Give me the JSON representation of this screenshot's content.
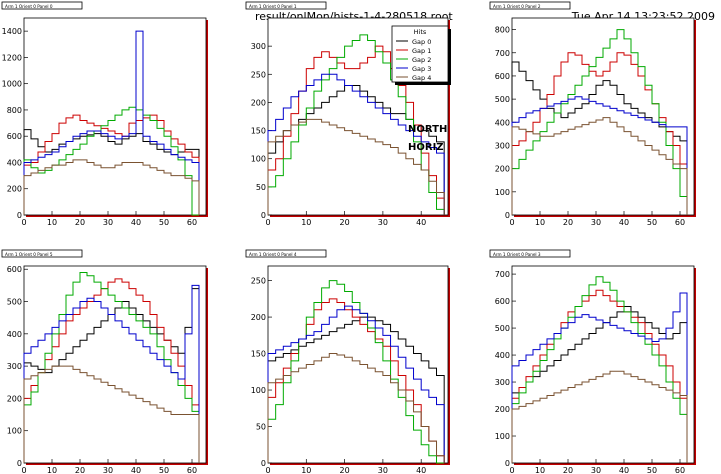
{
  "header": {
    "filename": "result/onlMon/hists-1-4-280518.root",
    "datetime": "Tue Apr 14 13:23:52 2009"
  },
  "annotation": {
    "line1": "NORTH",
    "line2": "HORIZ"
  },
  "colors": {
    "series": [
      "#000000",
      "#cc0000",
      "#00aa00",
      "#0000cc",
      "#7a5230"
    ],
    "frame_shadow": "#c00000"
  },
  "chart_data": [
    {
      "type": "line",
      "step": true,
      "title": "Arm 1 Orient 0 Panel 0",
      "xlim": [
        0,
        65
      ],
      "ylim": [
        0,
        1500
      ],
      "xticks": [
        0,
        10,
        20,
        30,
        40,
        50,
        60
      ],
      "yticks": [
        0,
        200,
        400,
        600,
        800,
        1000,
        1200,
        1400
      ],
      "x": [
        0,
        2.5,
        5,
        7.5,
        10,
        12.5,
        15,
        17.5,
        20,
        22.5,
        25,
        27.5,
        30,
        32.5,
        35,
        37.5,
        40,
        42.5,
        45,
        47.5,
        50,
        52.5,
        55,
        57.5,
        60
      ],
      "series": [
        {
          "values": [
            650,
            580,
            520,
            480,
            500,
            540,
            560,
            580,
            600,
            610,
            620,
            600,
            560,
            540,
            580,
            600,
            620,
            560,
            540,
            500,
            480,
            460,
            480,
            500,
            500
          ]
        },
        {
          "values": [
            380,
            400,
            480,
            560,
            620,
            700,
            740,
            760,
            720,
            700,
            680,
            660,
            640,
            620,
            600,
            700,
            720,
            740,
            760,
            720,
            640,
            580,
            540,
            480,
            440
          ]
        },
        {
          "values": [
            420,
            360,
            320,
            340,
            380,
            420,
            460,
            500,
            540,
            600,
            640,
            680,
            720,
            760,
            800,
            820,
            800,
            760,
            720,
            660,
            600,
            520,
            420,
            300,
            0
          ]
        },
        {
          "values": [
            400,
            420,
            440,
            460,
            480,
            520,
            560,
            600,
            620,
            640,
            640,
            620,
            600,
            580,
            600,
            620,
            1400,
            600,
            560,
            540,
            500,
            460,
            440,
            420,
            400
          ]
        },
        {
          "values": [
            300,
            320,
            340,
            360,
            380,
            380,
            400,
            420,
            420,
            400,
            380,
            360,
            360,
            380,
            400,
            400,
            400,
            380,
            360,
            340,
            320,
            300,
            300,
            280,
            260
          ]
        }
      ]
    },
    {
      "type": "line",
      "step": true,
      "title": "Arm 1 Orient 0 Panel 1",
      "xlim": [
        0,
        47
      ],
      "ylim": [
        0,
        350
      ],
      "xticks": [
        0,
        10,
        20,
        30,
        40
      ],
      "yticks": [
        0,
        50,
        100,
        150,
        200,
        250,
        300
      ],
      "x": [
        0,
        2,
        4,
        6,
        8,
        10,
        12,
        14,
        16,
        18,
        20,
        22,
        24,
        26,
        28,
        30,
        32,
        34,
        36,
        38,
        40,
        42,
        44
      ],
      "legend": {
        "title": "Hits",
        "placement": "top-right",
        "labels": [
          "Gap 0",
          "Gap 1",
          "Gap 2",
          "Gap 3",
          "Gap 4"
        ]
      },
      "series": [
        {
          "values": [
            110,
            130,
            150,
            160,
            170,
            180,
            190,
            200,
            210,
            220,
            230,
            230,
            220,
            210,
            200,
            190,
            180,
            180,
            170,
            160,
            150,
            140,
            130
          ]
        },
        {
          "values": [
            80,
            100,
            140,
            180,
            220,
            260,
            280,
            290,
            280,
            270,
            260,
            260,
            270,
            280,
            300,
            290,
            260,
            230,
            200,
            160,
            110,
            70,
            30
          ]
        },
        {
          "values": [
            50,
            70,
            100,
            130,
            160,
            190,
            220,
            240,
            260,
            280,
            300,
            310,
            320,
            310,
            290,
            270,
            240,
            210,
            170,
            130,
            80,
            40,
            10
          ]
        },
        {
          "values": [
            150,
            170,
            190,
            210,
            220,
            230,
            240,
            250,
            250,
            240,
            230,
            220,
            210,
            200,
            190,
            180,
            170,
            160,
            150,
            140,
            130,
            120,
            110
          ]
        },
        {
          "values": [
            130,
            140,
            150,
            160,
            165,
            170,
            170,
            165,
            160,
            155,
            150,
            145,
            140,
            135,
            130,
            125,
            120,
            110,
            100,
            90,
            80,
            60,
            40
          ]
        }
      ]
    },
    {
      "type": "line",
      "step": true,
      "title": "Arm 1 Orient 0 Panel 2",
      "xlim": [
        0,
        65
      ],
      "ylim": [
        0,
        850
      ],
      "xticks": [
        0,
        10,
        20,
        30,
        40,
        50,
        60
      ],
      "yticks": [
        0,
        100,
        200,
        300,
        400,
        500,
        600,
        700,
        800
      ],
      "x": [
        0,
        2.5,
        5,
        7.5,
        10,
        12.5,
        15,
        17.5,
        20,
        22.5,
        25,
        27.5,
        30,
        32.5,
        35,
        37.5,
        40,
        42.5,
        45,
        47.5,
        50,
        52.5,
        55,
        57.5,
        60
      ],
      "series": [
        {
          "values": [
            660,
            620,
            580,
            540,
            500,
            460,
            440,
            420,
            440,
            460,
            480,
            520,
            560,
            580,
            560,
            520,
            480,
            460,
            440,
            420,
            400,
            380,
            360,
            340,
            320
          ]
        },
        {
          "values": [
            300,
            320,
            360,
            400,
            460,
            520,
            600,
            660,
            700,
            690,
            650,
            620,
            600,
            620,
            660,
            700,
            690,
            650,
            600,
            540,
            480,
            420,
            360,
            300,
            220
          ]
        },
        {
          "values": [
            200,
            240,
            280,
            320,
            360,
            400,
            440,
            480,
            520,
            560,
            600,
            640,
            680,
            720,
            760,
            800,
            760,
            700,
            640,
            560,
            480,
            400,
            300,
            200,
            80
          ]
        },
        {
          "values": [
            400,
            420,
            440,
            450,
            460,
            470,
            480,
            490,
            500,
            510,
            500,
            490,
            480,
            470,
            460,
            450,
            440,
            430,
            420,
            410,
            400,
            390,
            380,
            380,
            380
          ]
        },
        {
          "values": [
            380,
            370,
            360,
            350,
            340,
            340,
            350,
            360,
            370,
            380,
            390,
            400,
            410,
            420,
            400,
            380,
            360,
            340,
            320,
            300,
            280,
            260,
            240,
            220,
            200
          ]
        }
      ]
    },
    {
      "type": "line",
      "step": true,
      "title": "Arm 1 Orient 0 Panel 5",
      "xlim": [
        0,
        65
      ],
      "ylim": [
        0,
        610
      ],
      "xticks": [
        0,
        10,
        20,
        30,
        40,
        50,
        60
      ],
      "yticks": [
        0,
        100,
        200,
        300,
        400,
        500,
        600
      ],
      "x": [
        0,
        2.5,
        5,
        7.5,
        10,
        12.5,
        15,
        17.5,
        20,
        22.5,
        25,
        27.5,
        30,
        32.5,
        35,
        37.5,
        40,
        42.5,
        45,
        47.5,
        50,
        52.5,
        55,
        57.5,
        60
      ],
      "series": [
        {
          "values": [
            310,
            300,
            290,
            280,
            300,
            320,
            340,
            360,
            380,
            400,
            420,
            440,
            460,
            480,
            500,
            480,
            460,
            440,
            420,
            400,
            380,
            360,
            340,
            420,
            540
          ]
        },
        {
          "values": [
            200,
            240,
            280,
            320,
            360,
            400,
            440,
            460,
            480,
            500,
            520,
            540,
            560,
            570,
            560,
            540,
            520,
            500,
            460,
            420,
            380,
            340,
            300,
            240,
            180
          ]
        },
        {
          "values": [
            180,
            220,
            280,
            340,
            400,
            460,
            520,
            560,
            590,
            580,
            560,
            540,
            520,
            500,
            480,
            460,
            440,
            420,
            400,
            360,
            320,
            280,
            240,
            200,
            160
          ]
        },
        {
          "values": [
            340,
            360,
            380,
            400,
            420,
            440,
            460,
            480,
            500,
            510,
            500,
            480,
            460,
            440,
            420,
            400,
            380,
            360,
            340,
            320,
            300,
            280,
            260,
            400,
            550
          ]
        },
        {
          "values": [
            260,
            270,
            280,
            290,
            300,
            300,
            300,
            290,
            280,
            270,
            260,
            250,
            240,
            230,
            220,
            210,
            200,
            190,
            180,
            170,
            160,
            150,
            150,
            150,
            150
          ]
        }
      ]
    },
    {
      "type": "line",
      "step": true,
      "title": "Arm 1 Orient 0 Panel 4",
      "xlim": [
        0,
        47
      ],
      "ylim": [
        0,
        270
      ],
      "xticks": [
        0,
        10,
        20,
        30,
        40
      ],
      "yticks": [
        0,
        50,
        100,
        150,
        200,
        250
      ],
      "x": [
        0,
        2,
        4,
        6,
        8,
        10,
        12,
        14,
        16,
        18,
        20,
        22,
        24,
        26,
        28,
        30,
        32,
        34,
        36,
        38,
        40,
        42,
        44
      ],
      "series": [
        {
          "values": [
            140,
            145,
            150,
            155,
            160,
            165,
            170,
            175,
            180,
            185,
            190,
            195,
            200,
            200,
            195,
            190,
            180,
            170,
            160,
            150,
            140,
            130,
            120
          ]
        },
        {
          "values": [
            90,
            110,
            130,
            150,
            170,
            190,
            210,
            220,
            225,
            220,
            210,
            200,
            190,
            180,
            170,
            160,
            140,
            120,
            100,
            80,
            50,
            30,
            10
          ]
        },
        {
          "values": [
            60,
            80,
            110,
            140,
            170,
            200,
            220,
            240,
            250,
            245,
            235,
            220,
            205,
            185,
            165,
            140,
            115,
            90,
            65,
            45,
            25,
            10,
            0
          ]
        },
        {
          "values": [
            150,
            155,
            160,
            165,
            170,
            175,
            180,
            190,
            200,
            210,
            215,
            210,
            205,
            195,
            185,
            175,
            160,
            145,
            130,
            115,
            100,
            90,
            80
          ]
        },
        {
          "values": [
            110,
            115,
            120,
            125,
            130,
            135,
            140,
            145,
            150,
            148,
            145,
            140,
            135,
            130,
            125,
            120,
            110,
            100,
            85,
            70,
            50,
            30,
            10
          ]
        }
      ]
    },
    {
      "type": "line",
      "step": true,
      "title": "Arm 1 Orient 0 Panel 3",
      "xlim": [
        0,
        65
      ],
      "ylim": [
        0,
        730
      ],
      "xticks": [
        0,
        10,
        20,
        30,
        40,
        50,
        60
      ],
      "yticks": [
        0,
        100,
        200,
        300,
        400,
        500,
        600,
        700
      ],
      "x": [
        0,
        2.5,
        5,
        7.5,
        10,
        12.5,
        15,
        17.5,
        20,
        22.5,
        25,
        27.5,
        30,
        32.5,
        35,
        37.5,
        40,
        42.5,
        45,
        47.5,
        50,
        52.5,
        55,
        57.5,
        60
      ],
      "series": [
        {
          "values": [
            260,
            280,
            300,
            320,
            340,
            360,
            380,
            400,
            420,
            440,
            460,
            480,
            500,
            520,
            540,
            560,
            580,
            560,
            540,
            520,
            500,
            480,
            460,
            480,
            520
          ]
        },
        {
          "values": [
            240,
            280,
            320,
            360,
            400,
            440,
            480,
            520,
            560,
            580,
            600,
            620,
            640,
            620,
            600,
            580,
            560,
            540,
            520,
            480,
            440,
            400,
            360,
            300,
            240
          ]
        },
        {
          "values": [
            220,
            260,
            300,
            340,
            380,
            420,
            460,
            500,
            540,
            580,
            620,
            660,
            690,
            670,
            640,
            600,
            560,
            520,
            480,
            440,
            400,
            360,
            300,
            240,
            180
          ]
        },
        {
          "values": [
            360,
            380,
            400,
            420,
            440,
            460,
            480,
            500,
            520,
            540,
            550,
            540,
            530,
            520,
            510,
            500,
            490,
            480,
            470,
            460,
            450,
            460,
            500,
            560,
            630
          ]
        },
        {
          "values": [
            200,
            210,
            220,
            230,
            240,
            250,
            260,
            270,
            280,
            290,
            300,
            310,
            320,
            330,
            340,
            340,
            330,
            320,
            310,
            300,
            290,
            280,
            270,
            260,
            250
          ]
        }
      ]
    }
  ]
}
